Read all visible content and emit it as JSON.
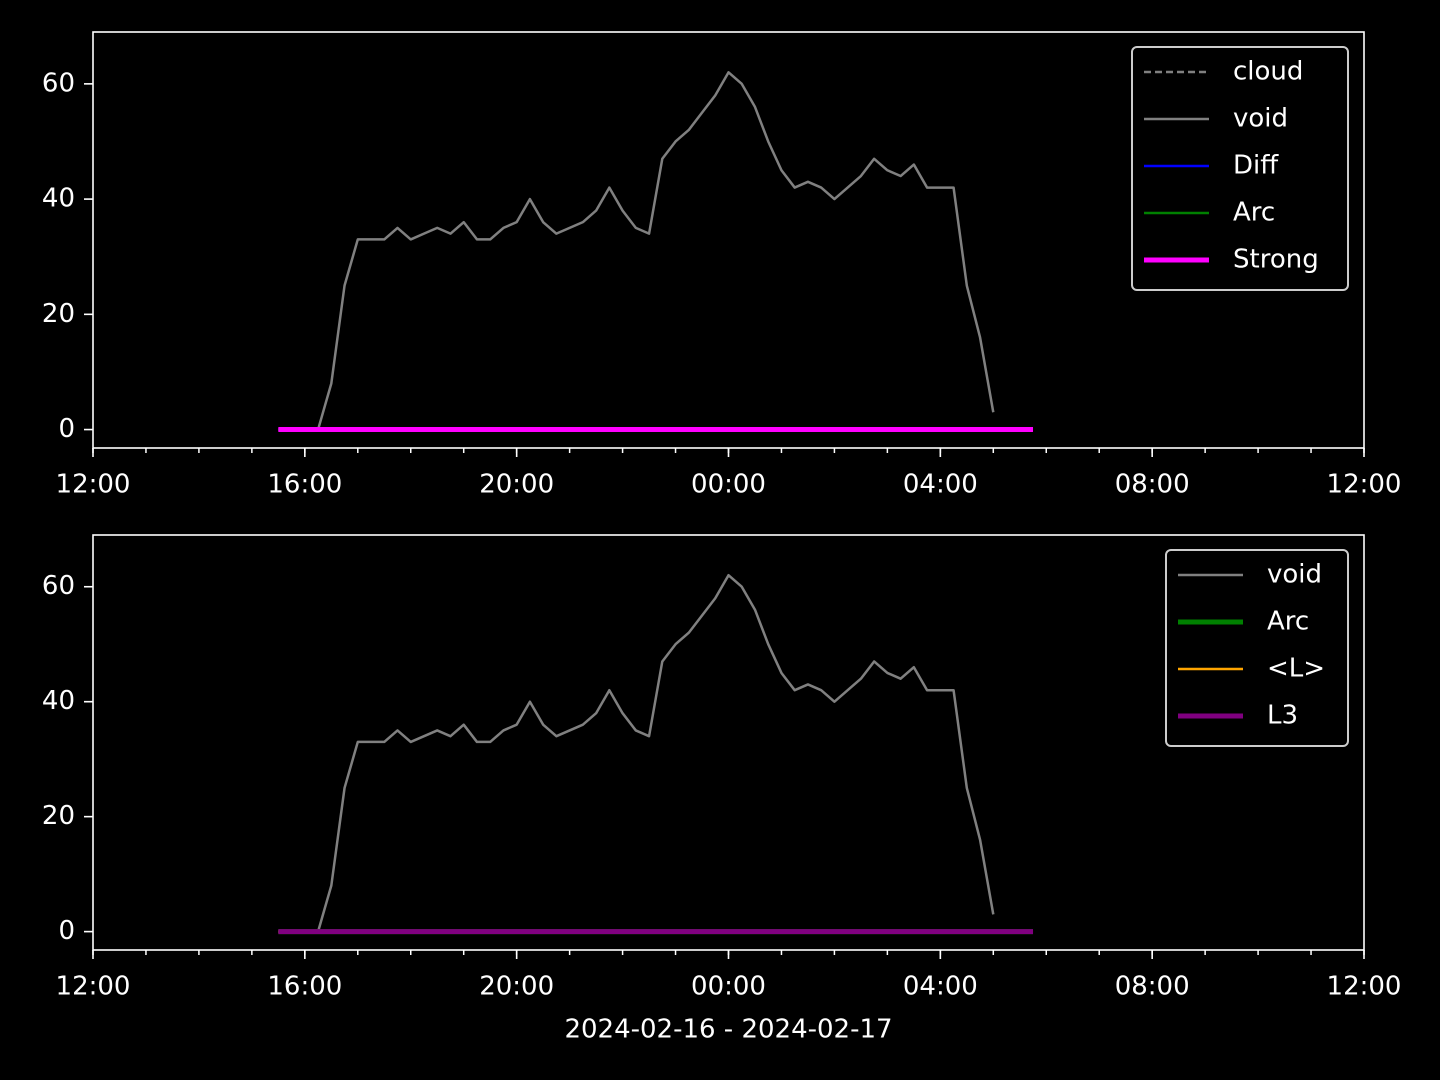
{
  "chart_data": [
    {
      "type": "line",
      "x": [
        "2024-02-16T15:30",
        "2024-02-16T15:45",
        "2024-02-16T16:00",
        "2024-02-16T16:15",
        "2024-02-16T16:30",
        "2024-02-16T16:45",
        "2024-02-16T17:00",
        "2024-02-16T17:15",
        "2024-02-16T17:30",
        "2024-02-16T17:45",
        "2024-02-16T18:00",
        "2024-02-16T18:15",
        "2024-02-16T18:30",
        "2024-02-16T18:45",
        "2024-02-16T19:00",
        "2024-02-16T19:15",
        "2024-02-16T19:30",
        "2024-02-16T19:45",
        "2024-02-16T20:00",
        "2024-02-16T20:15",
        "2024-02-16T20:30",
        "2024-02-16T20:45",
        "2024-02-16T21:00",
        "2024-02-16T21:15",
        "2024-02-16T21:30",
        "2024-02-16T21:45",
        "2024-02-16T22:00",
        "2024-02-16T22:15",
        "2024-02-16T22:30",
        "2024-02-16T22:45",
        "2024-02-16T23:00",
        "2024-02-16T23:15",
        "2024-02-16T23:30",
        "2024-02-16T23:45",
        "2024-02-17T00:00",
        "2024-02-17T00:15",
        "2024-02-17T00:30",
        "2024-02-17T00:45",
        "2024-02-17T01:00",
        "2024-02-17T01:15",
        "2024-02-17T01:30",
        "2024-02-17T01:45",
        "2024-02-17T02:00",
        "2024-02-17T02:15",
        "2024-02-17T02:30",
        "2024-02-17T02:45",
        "2024-02-17T03:00",
        "2024-02-17T03:15",
        "2024-02-17T03:30",
        "2024-02-17T03:45",
        "2024-02-17T04:00",
        "2024-02-17T04:15",
        "2024-02-17T04:30",
        "2024-02-17T04:45",
        "2024-02-17T05:00",
        "2024-02-17T05:15",
        "2024-02-17T05:30",
        "2024-02-17T05:45"
      ],
      "series": [
        {
          "name": "cloud",
          "color": "#808080",
          "linestyle": "dashed",
          "linewidth": 1,
          "values": [
            0,
            0,
            0,
            0,
            0,
            0,
            0,
            0,
            0,
            0,
            0,
            0,
            0,
            0,
            0,
            0,
            0,
            0,
            0,
            0,
            0,
            0,
            0,
            0,
            0,
            0,
            0,
            0,
            0,
            0,
            0,
            0,
            0,
            0,
            0,
            0,
            0,
            0,
            0,
            0,
            0,
            0,
            0,
            0,
            0,
            0,
            0,
            0,
            0,
            0,
            0,
            0,
            0,
            0,
            0,
            0,
            0,
            0
          ]
        },
        {
          "name": "void",
          "color": "#808080",
          "linestyle": "solid",
          "linewidth": 1,
          "values": [
            0,
            0,
            0,
            0,
            8,
            25,
            33,
            33,
            33,
            35,
            33,
            34,
            35,
            34,
            36,
            33,
            33,
            35,
            36,
            40,
            36,
            34,
            35,
            36,
            38,
            42,
            38,
            35,
            34,
            47,
            50,
            52,
            55,
            58,
            62,
            60,
            56,
            50,
            45,
            42,
            43,
            42,
            40,
            42,
            44,
            47,
            45,
            44,
            46,
            42,
            42,
            42,
            25,
            16,
            3,
            null,
            null,
            null
          ]
        },
        {
          "name": "Diff",
          "color": "#0000ff",
          "linestyle": "solid",
          "linewidth": 1,
          "values": [
            0,
            0,
            0,
            0,
            0,
            0,
            0,
            0,
            0,
            0,
            0,
            0,
            0,
            0,
            0,
            0,
            0,
            0,
            0,
            0,
            0,
            0,
            0,
            0,
            0,
            0,
            0,
            0,
            0,
            0,
            0,
            0,
            0,
            0,
            0,
            0,
            0,
            0,
            0,
            0,
            0,
            0,
            0,
            0,
            0,
            0,
            0,
            0,
            0,
            0,
            0,
            0,
            0,
            0,
            0,
            0,
            0,
            0
          ]
        },
        {
          "name": "Arc",
          "color": "#008000",
          "linestyle": "solid",
          "linewidth": 1,
          "values": [
            0,
            0,
            0,
            0,
            0,
            0,
            0,
            0,
            0,
            0,
            0,
            0,
            0,
            0,
            0,
            0,
            0,
            0,
            0,
            0,
            0,
            0,
            0,
            0,
            0,
            0,
            0,
            0,
            0,
            0,
            0,
            0,
            0,
            0,
            0,
            0,
            0,
            0,
            0,
            0,
            0,
            0,
            0,
            0,
            0,
            0,
            0,
            0,
            0,
            0,
            0,
            0,
            0,
            0,
            0,
            0,
            0,
            0
          ]
        },
        {
          "name": "Strong",
          "color": "#ff00ff",
          "linestyle": "solid",
          "linewidth": 2,
          "values": [
            0,
            0,
            0,
            0,
            0,
            0,
            0,
            0,
            0,
            0,
            0,
            0,
            0,
            0,
            0,
            0,
            0,
            0,
            0,
            0,
            0,
            0,
            0,
            0,
            0,
            0,
            0,
            0,
            0,
            0,
            0,
            0,
            0,
            0,
            0,
            0,
            0,
            0,
            0,
            0,
            0,
            0,
            0,
            0,
            0,
            0,
            0,
            0,
            0,
            0,
            0,
            0,
            0,
            0,
            0,
            0,
            0,
            0
          ]
        }
      ],
      "xlim": [
        "2024-02-16T12:00",
        "2024-02-17T12:00"
      ],
      "xticks": [
        {
          "value": "2024-02-16T12:00",
          "label": "12:00"
        },
        {
          "value": "2024-02-16T16:00",
          "label": "16:00"
        },
        {
          "value": "2024-02-16T20:00",
          "label": "20:00"
        },
        {
          "value": "2024-02-17T00:00",
          "label": "00:00"
        },
        {
          "value": "2024-02-17T04:00",
          "label": "04:00"
        },
        {
          "value": "2024-02-17T08:00",
          "label": "08:00"
        },
        {
          "value": "2024-02-17T12:00",
          "label": "12:00"
        }
      ],
      "ylim": [
        -3.2,
        69
      ],
      "yticks": [
        0,
        20,
        40,
        60
      ],
      "legend": "upper right"
    },
    {
      "type": "line",
      "x": [
        "2024-02-16T15:30",
        "2024-02-16T15:45",
        "2024-02-16T16:00",
        "2024-02-16T16:15",
        "2024-02-16T16:30",
        "2024-02-16T16:45",
        "2024-02-16T17:00",
        "2024-02-16T17:15",
        "2024-02-16T17:30",
        "2024-02-16T17:45",
        "2024-02-16T18:00",
        "2024-02-16T18:15",
        "2024-02-16T18:30",
        "2024-02-16T18:45",
        "2024-02-16T19:00",
        "2024-02-16T19:15",
        "2024-02-16T19:30",
        "2024-02-16T19:45",
        "2024-02-16T20:00",
        "2024-02-16T20:15",
        "2024-02-16T20:30",
        "2024-02-16T20:45",
        "2024-02-16T21:00",
        "2024-02-16T21:15",
        "2024-02-16T21:30",
        "2024-02-16T21:45",
        "2024-02-16T22:00",
        "2024-02-16T22:15",
        "2024-02-16T22:30",
        "2024-02-16T22:45",
        "2024-02-16T23:00",
        "2024-02-16T23:15",
        "2024-02-16T23:30",
        "2024-02-16T23:45",
        "2024-02-17T00:00",
        "2024-02-17T00:15",
        "2024-02-17T00:30",
        "2024-02-17T00:45",
        "2024-02-17T01:00",
        "2024-02-17T01:15",
        "2024-02-17T01:30",
        "2024-02-17T01:45",
        "2024-02-17T02:00",
        "2024-02-17T02:15",
        "2024-02-17T02:30",
        "2024-02-17T02:45",
        "2024-02-17T03:00",
        "2024-02-17T03:15",
        "2024-02-17T03:30",
        "2024-02-17T03:45",
        "2024-02-17T04:00",
        "2024-02-17T04:15",
        "2024-02-17T04:30",
        "2024-02-17T04:45",
        "2024-02-17T05:00",
        "2024-02-17T05:15",
        "2024-02-17T05:30",
        "2024-02-17T05:45"
      ],
      "series": [
        {
          "name": "void",
          "color": "#808080",
          "linestyle": "solid",
          "linewidth": 1,
          "values": [
            0,
            0,
            0,
            0,
            8,
            25,
            33,
            33,
            33,
            35,
            33,
            34,
            35,
            34,
            36,
            33,
            33,
            35,
            36,
            40,
            36,
            34,
            35,
            36,
            38,
            42,
            38,
            35,
            34,
            47,
            50,
            52,
            55,
            58,
            62,
            60,
            56,
            50,
            45,
            42,
            43,
            42,
            40,
            42,
            44,
            47,
            45,
            44,
            46,
            42,
            42,
            42,
            25,
            16,
            3,
            null,
            null,
            null
          ]
        },
        {
          "name": "Arc",
          "color": "#008000",
          "linestyle": "solid",
          "linewidth": 2,
          "values": [
            0,
            0,
            0,
            0,
            0,
            0,
            0,
            0,
            0,
            0,
            0,
            0,
            0,
            0,
            0,
            0,
            0,
            0,
            0,
            0,
            0,
            0,
            0,
            0,
            0,
            0,
            0,
            0,
            0,
            0,
            0,
            0,
            0,
            0,
            0,
            0,
            0,
            0,
            0,
            0,
            0,
            0,
            0,
            0,
            0,
            0,
            0,
            0,
            0,
            0,
            0,
            0,
            0,
            0,
            0,
            0,
            0,
            0
          ]
        },
        {
          "name": "<L>",
          "color": "#ffa500",
          "linestyle": "solid",
          "linewidth": 1,
          "values": [
            0,
            0,
            0,
            0,
            0,
            0,
            0,
            0,
            0,
            0,
            0,
            0,
            0,
            0,
            0,
            0,
            0,
            0,
            0,
            0,
            0,
            0,
            0,
            0,
            0,
            0,
            0,
            0,
            0,
            0,
            0,
            0,
            0,
            0,
            0,
            0,
            0,
            0,
            0,
            0,
            0,
            0,
            0,
            0,
            0,
            0,
            0,
            0,
            0,
            0,
            0,
            0,
            0,
            0,
            0,
            0,
            0,
            0
          ]
        },
        {
          "name": "L3",
          "color": "#800080",
          "linestyle": "solid",
          "linewidth": 2,
          "values": [
            0,
            0,
            0,
            0,
            0,
            0,
            0,
            0,
            0,
            0,
            0,
            0,
            0,
            0,
            0,
            0,
            0,
            0,
            0,
            0,
            0,
            0,
            0,
            0,
            0,
            0,
            0,
            0,
            0,
            0,
            0,
            0,
            0,
            0,
            0,
            0,
            0,
            0,
            0,
            0,
            0,
            0,
            0,
            0,
            0,
            0,
            0,
            0,
            0,
            0,
            0,
            0,
            0,
            0,
            0,
            0,
            0,
            0
          ]
        }
      ],
      "xlim": [
        "2024-02-16T12:00",
        "2024-02-17T12:00"
      ],
      "xticks": [
        {
          "value": "2024-02-16T12:00",
          "label": "12:00"
        },
        {
          "value": "2024-02-16T16:00",
          "label": "16:00"
        },
        {
          "value": "2024-02-16T20:00",
          "label": "20:00"
        },
        {
          "value": "2024-02-17T00:00",
          "label": "00:00"
        },
        {
          "value": "2024-02-17T04:00",
          "label": "04:00"
        },
        {
          "value": "2024-02-17T08:00",
          "label": "08:00"
        },
        {
          "value": "2024-02-17T12:00",
          "label": "12:00"
        }
      ],
      "ylim": [
        -3.2,
        69
      ],
      "yticks": [
        0,
        20,
        40,
        60
      ],
      "xlabel": "2024-02-16 - 2024-02-17",
      "legend": "upper right"
    }
  ]
}
